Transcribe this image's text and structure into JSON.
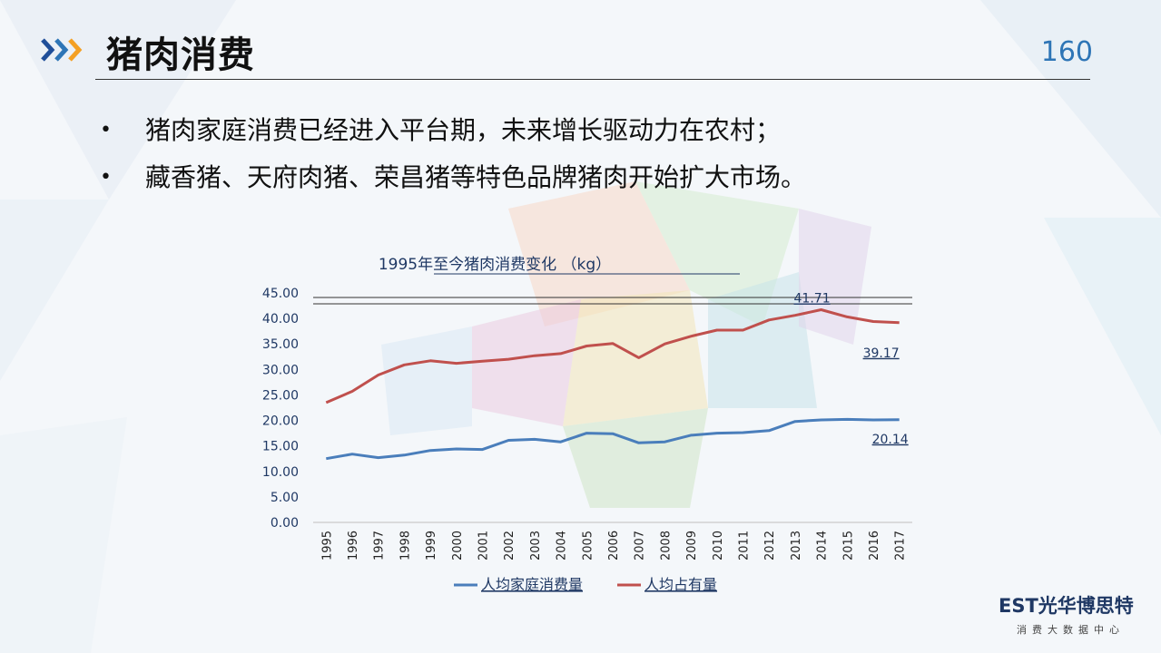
{
  "header": {
    "title": "猪肉消费",
    "page_number": "160"
  },
  "bullets": [
    "猪肉家庭消费已经进入平台期，未来增长驱动力在农村；",
    "藏香猪、天府肉猪、荣昌猪等特色品牌猪肉开始扩大市场。"
  ],
  "logo": {
    "main": "EST光华博思特",
    "sub": "消费大数据中心"
  },
  "colors": {
    "accent_blue": "#2e75b6",
    "accent_orange": "#f4a024",
    "series_blue": "#4a7ebb",
    "series_red": "#c0504d"
  },
  "chart_data": {
    "type": "line",
    "title": "1995年至今猪肉消费变化 （kg）",
    "x": [
      "1995",
      "1996",
      "1997",
      "1998",
      "1999",
      "2000",
      "2001",
      "2002",
      "2003",
      "2004",
      "2005",
      "2006",
      "2007",
      "2008",
      "2009",
      "2010",
      "2011",
      "2012",
      "2013",
      "2014",
      "2015",
      "2016",
      "2017"
    ],
    "y_ticks": [
      "0.00",
      "5.00",
      "10.00",
      "15.00",
      "20.00",
      "25.00",
      "30.00",
      "35.00",
      "40.00",
      "45.00"
    ],
    "ylim": [
      0,
      45
    ],
    "series": [
      {
        "name": "人均家庭消费量",
        "color": "#4a7ebb",
        "values": [
          12.5,
          13.4,
          12.7,
          13.2,
          14.1,
          14.4,
          14.3,
          16.1,
          16.3,
          15.8,
          17.5,
          17.4,
          15.6,
          15.8,
          17.1,
          17.5,
          17.6,
          18.0,
          19.8,
          20.1,
          20.2,
          20.1,
          20.14
        ]
      },
      {
        "name": "人均占有量",
        "color": "#c0504d",
        "values": [
          23.5,
          25.7,
          28.9,
          30.9,
          31.7,
          31.2,
          31.6,
          32.0,
          32.7,
          33.1,
          34.6,
          35.1,
          32.3,
          35.0,
          36.5,
          37.7,
          37.7,
          39.7,
          40.6,
          41.71,
          40.3,
          39.4,
          39.17
        ]
      }
    ],
    "data_labels": [
      {
        "series": 1,
        "x": "2014",
        "text": "41.71"
      },
      {
        "series": 1,
        "x": "2017",
        "text": "39.17"
      },
      {
        "series": 0,
        "x": "2017",
        "text": "20.14"
      }
    ],
    "legend": "bottom",
    "grid": false
  }
}
